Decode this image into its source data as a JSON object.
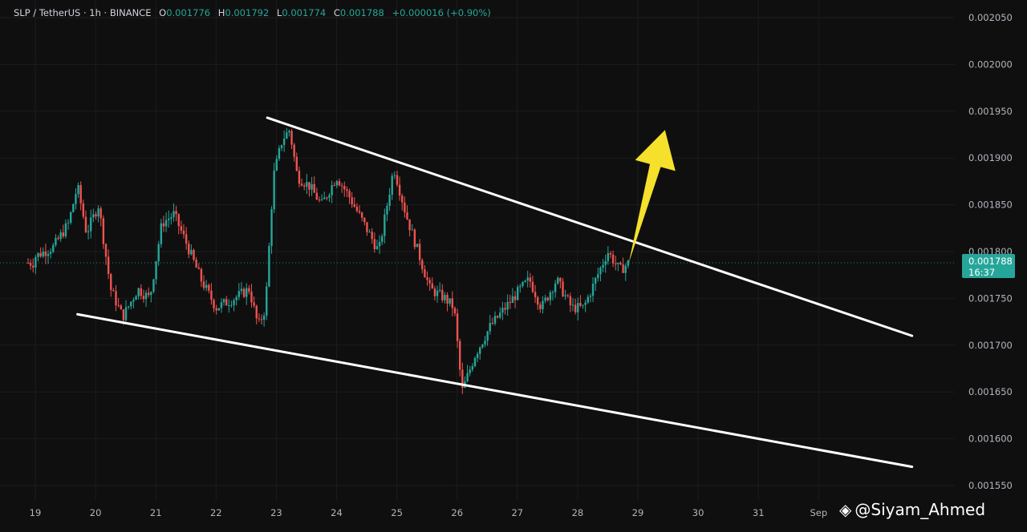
{
  "legend": {
    "symbol": "SLP / TetherUS · 1h · BINANCE",
    "open_label": "O",
    "open": "0.001776",
    "high_label": "H",
    "high": "0.001792",
    "low_label": "L",
    "low": "0.001774",
    "close_label": "C",
    "close": "0.001788",
    "change": "+0.000016 (+0.90%)"
  },
  "price_tag": {
    "price": "0.001788",
    "countdown": "16:37"
  },
  "watermark": {
    "text": "@Siyam_Ahmed",
    "icon": "binance-logo-icon"
  },
  "chart_data": {
    "type": "candlestick",
    "xlabel": "",
    "ylabel": "",
    "x_ticks": [
      "19",
      "20",
      "21",
      "22",
      "23",
      "24",
      "25",
      "26",
      "27",
      "28",
      "29",
      "30",
      "31",
      "Sep"
    ],
    "y_ticks": [
      "0.002050",
      "0.002000",
      "0.001950",
      "0.001900",
      "0.001850",
      "0.001800",
      "0.001750",
      "0.001700",
      "0.001650",
      "0.001600",
      "0.001550"
    ],
    "ylim": [
      0.00153,
      0.002065
    ],
    "last_price": 0.001788,
    "colors": {
      "up": "#26a69a",
      "down": "#ef5350",
      "trendline": "#ffffff",
      "arrow": "#f5e02c",
      "background": "#0f0f0f"
    },
    "price_path": [
      [
        19.0,
        0.001795
      ],
      [
        19.3,
        0.001805
      ],
      [
        19.55,
        0.00183
      ],
      [
        19.7,
        0.00187
      ],
      [
        19.85,
        0.00182
      ],
      [
        20.05,
        0.00185
      ],
      [
        20.25,
        0.00176
      ],
      [
        20.45,
        0.00173
      ],
      [
        20.7,
        0.00176
      ],
      [
        20.9,
        0.00175
      ],
      [
        21.1,
        0.00183
      ],
      [
        21.3,
        0.00184
      ],
      [
        21.5,
        0.00181
      ],
      [
        21.75,
        0.00177
      ],
      [
        22.0,
        0.00174
      ],
      [
        22.3,
        0.00175
      ],
      [
        22.55,
        0.00176
      ],
      [
        22.7,
        0.00172
      ],
      [
        22.82,
        0.00174
      ],
      [
        22.95,
        0.00188
      ],
      [
        23.1,
        0.00192
      ],
      [
        23.22,
        0.00193
      ],
      [
        23.35,
        0.00188
      ],
      [
        23.55,
        0.00187
      ],
      [
        23.75,
        0.00185
      ],
      [
        24.0,
        0.00188
      ],
      [
        24.2,
        0.00186
      ],
      [
        24.45,
        0.00183
      ],
      [
        24.7,
        0.0018
      ],
      [
        24.95,
        0.00189
      ],
      [
        25.15,
        0.00184
      ],
      [
        25.35,
        0.0018
      ],
      [
        25.55,
        0.00176
      ],
      [
        25.8,
        0.00175
      ],
      [
        25.95,
        0.00174
      ],
      [
        26.08,
        0.00165
      ],
      [
        26.3,
        0.00169
      ],
      [
        26.55,
        0.00172
      ],
      [
        26.8,
        0.00174
      ],
      [
        27.05,
        0.00176
      ],
      [
        27.2,
        0.00177
      ],
      [
        27.4,
        0.00174
      ],
      [
        27.65,
        0.00177
      ],
      [
        27.9,
        0.00174
      ],
      [
        28.1,
        0.00174
      ],
      [
        28.3,
        0.00177
      ],
      [
        28.5,
        0.0018
      ],
      [
        28.7,
        0.00178
      ],
      [
        28.85,
        0.001788
      ]
    ],
    "trendlines": [
      {
        "name": "upper",
        "from": [
          22.85,
          0.001943
        ],
        "to": [
          33.55,
          0.00171
        ]
      },
      {
        "name": "lower",
        "from": [
          19.7,
          0.001733
        ],
        "to": [
          33.55,
          0.00157
        ]
      }
    ],
    "arrow": {
      "from": [
        28.85,
        0.001788
      ],
      "to": [
        29.45,
        0.00193
      ]
    }
  }
}
